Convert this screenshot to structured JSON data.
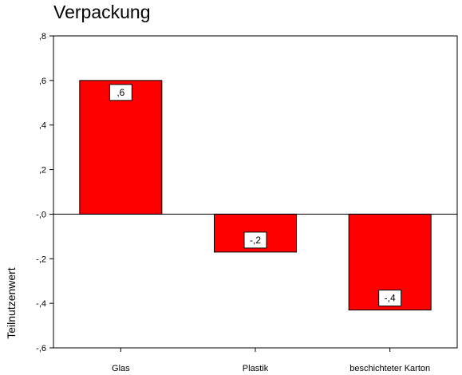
{
  "chart_data": {
    "type": "bar",
    "title": "Verpackung",
    "xlabel": "",
    "ylabel": "Teilnutzenwert",
    "categories": [
      "Glas",
      "Plastik",
      "beschichteter Karton"
    ],
    "values": [
      0.6,
      -0.17,
      -0.43
    ],
    "data_labels": [
      ",6",
      "-,2",
      "-,4"
    ],
    "ylim": [
      -0.6,
      0.8
    ],
    "yticks": [
      0.8,
      0.6,
      0.4,
      0.2,
      0.0,
      -0.2,
      -0.4,
      -0.6
    ],
    "ytick_labels": [
      ",8",
      ",6",
      ",4",
      ",2",
      "-,0",
      "-,2",
      "-,4",
      "-,6"
    ],
    "grid": false,
    "legend": "none",
    "bar_color": "#ff0000",
    "bar_edge_color": "#000000"
  }
}
